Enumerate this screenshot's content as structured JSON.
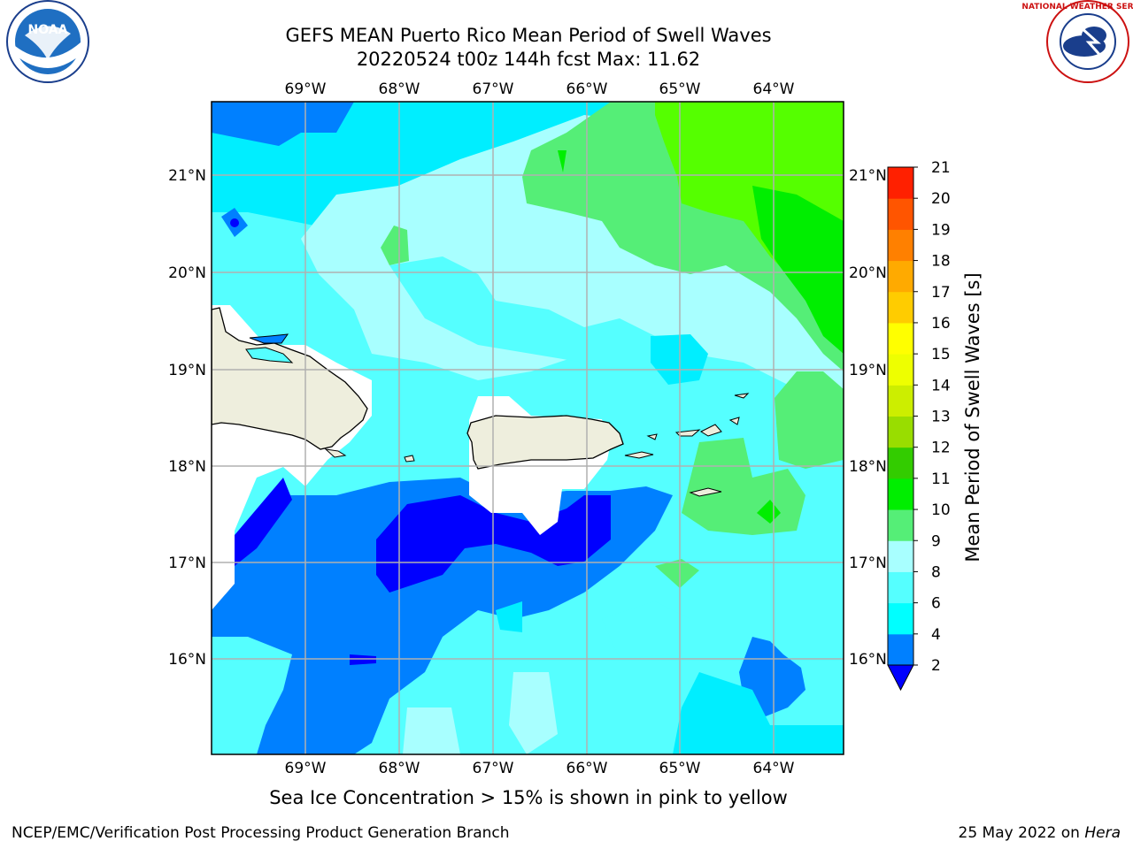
{
  "title": {
    "line1": "GEFS MEAN Puerto Rico Mean Period of Swell Waves",
    "line2": "20220524 t00z 144h fcst   Max: 11.62"
  },
  "map": {
    "lon_labels": [
      "69°W",
      "68°W",
      "67°W",
      "66°W",
      "65°W",
      "64°W"
    ],
    "lat_labels": [
      "21°N",
      "20°N",
      "19°N",
      "18°N",
      "17°N",
      "16°N"
    ],
    "colors": {
      "sea_light": "#a8ffff",
      "sea_cyan": "#55ffff",
      "sea_bright": "#00eeff",
      "sea_blue": "#0080ff",
      "sea_deep": "#0000ff",
      "green_light": "#55ee77",
      "green": "#55ff00",
      "green_bright": "#00ee00",
      "land": "#eeeedd",
      "nodata": "#ffffff",
      "grid": "#b0b0b0"
    }
  },
  "colorbar": {
    "label": "Mean Period of Swell Waves [s]",
    "ticks": [
      "2",
      "4",
      "6",
      "8",
      "9",
      "10",
      "11",
      "12",
      "13",
      "14",
      "15",
      "16",
      "17",
      "18",
      "19",
      "20",
      "21"
    ],
    "colors": [
      "#0080ff",
      "#00ffff",
      "#55ffff",
      "#a8ffff",
      "#55ee77",
      "#00ee00",
      "#33cc00",
      "#99dd00",
      "#ccee00",
      "#eeff00",
      "#ffff00",
      "#ffcc00",
      "#ffaa00",
      "#ff8000",
      "#ff5500",
      "#ff2000"
    ],
    "extend_color": "#0000ff"
  },
  "caption": "Sea Ice Concentration > 15% is shown in pink to yellow",
  "footer": {
    "left": "NCEP/EMC/Verification Post Processing Product Generation Branch",
    "right_prefix": "25 May 2022 on ",
    "right_host": "Hera"
  },
  "logos": {
    "noaa_text": "NOAA",
    "nws_text": "NATIONAL WEATHER SERVICE"
  }
}
